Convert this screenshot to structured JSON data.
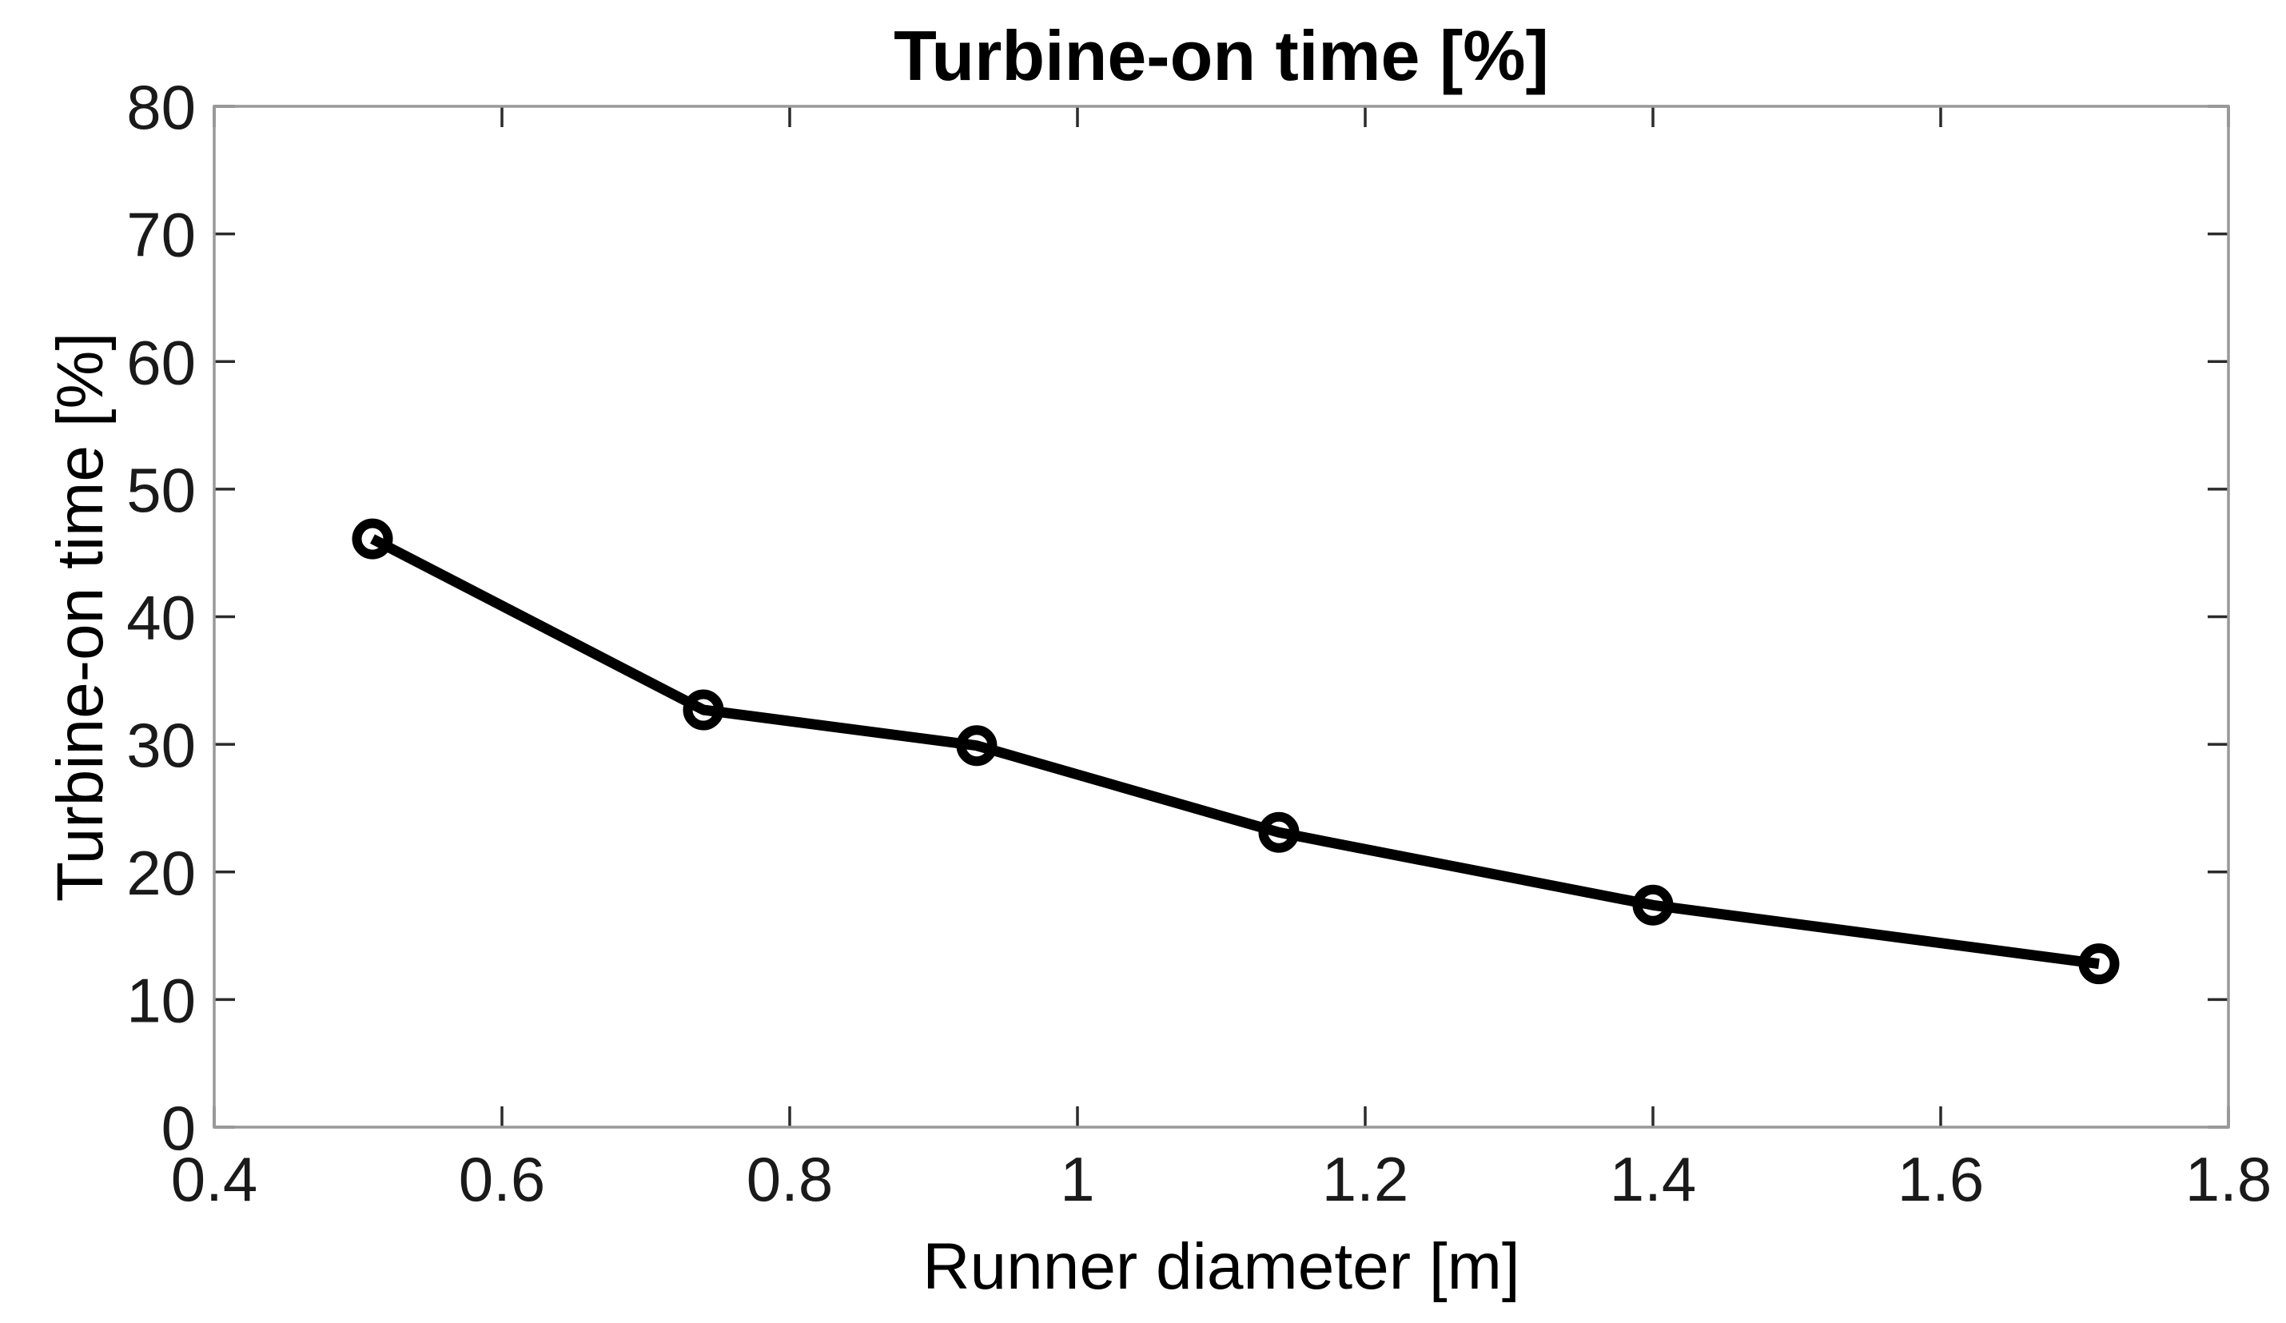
{
  "chart_data": {
    "type": "line",
    "title": "Turbine-on time [%]",
    "xlabel": "Runner diameter [m]",
    "ylabel": "Turbine-on time [%]",
    "xlim": [
      0.4,
      1.8
    ],
    "ylim": [
      0,
      80
    ],
    "xticks": [
      0.4,
      0.6,
      0.8,
      1,
      1.2,
      1.4,
      1.6,
      1.8
    ],
    "xtick_labels": [
      "0.4",
      "0.6",
      "0.8",
      "1",
      "1.2",
      "1.4",
      "1.6",
      "1.8"
    ],
    "yticks": [
      0,
      10,
      20,
      30,
      40,
      50,
      60,
      70,
      80
    ],
    "ytick_labels": [
      "0",
      "10",
      "20",
      "30",
      "40",
      "50",
      "60",
      "70",
      "80"
    ],
    "grid": false,
    "box": true,
    "legend_position": "none",
    "series": [
      {
        "name": "Turbine-on time",
        "x": [
          0.51,
          0.74,
          0.93,
          1.14,
          1.4,
          1.71
        ],
        "y": [
          46.1,
          32.7,
          29.9,
          23.1,
          17.4,
          12.8
        ],
        "marker": "open-circle",
        "line_style": "solid"
      }
    ],
    "colors": {
      "background": "#ffffff",
      "line": "#000000",
      "marker_stroke": "#000000",
      "marker_fill": "none",
      "spine": "#999999",
      "tick_mark": "#2b2b2b",
      "tick_label": "#1a1a1a",
      "axis_label": "#3d3d3d",
      "title": "#000000"
    }
  }
}
